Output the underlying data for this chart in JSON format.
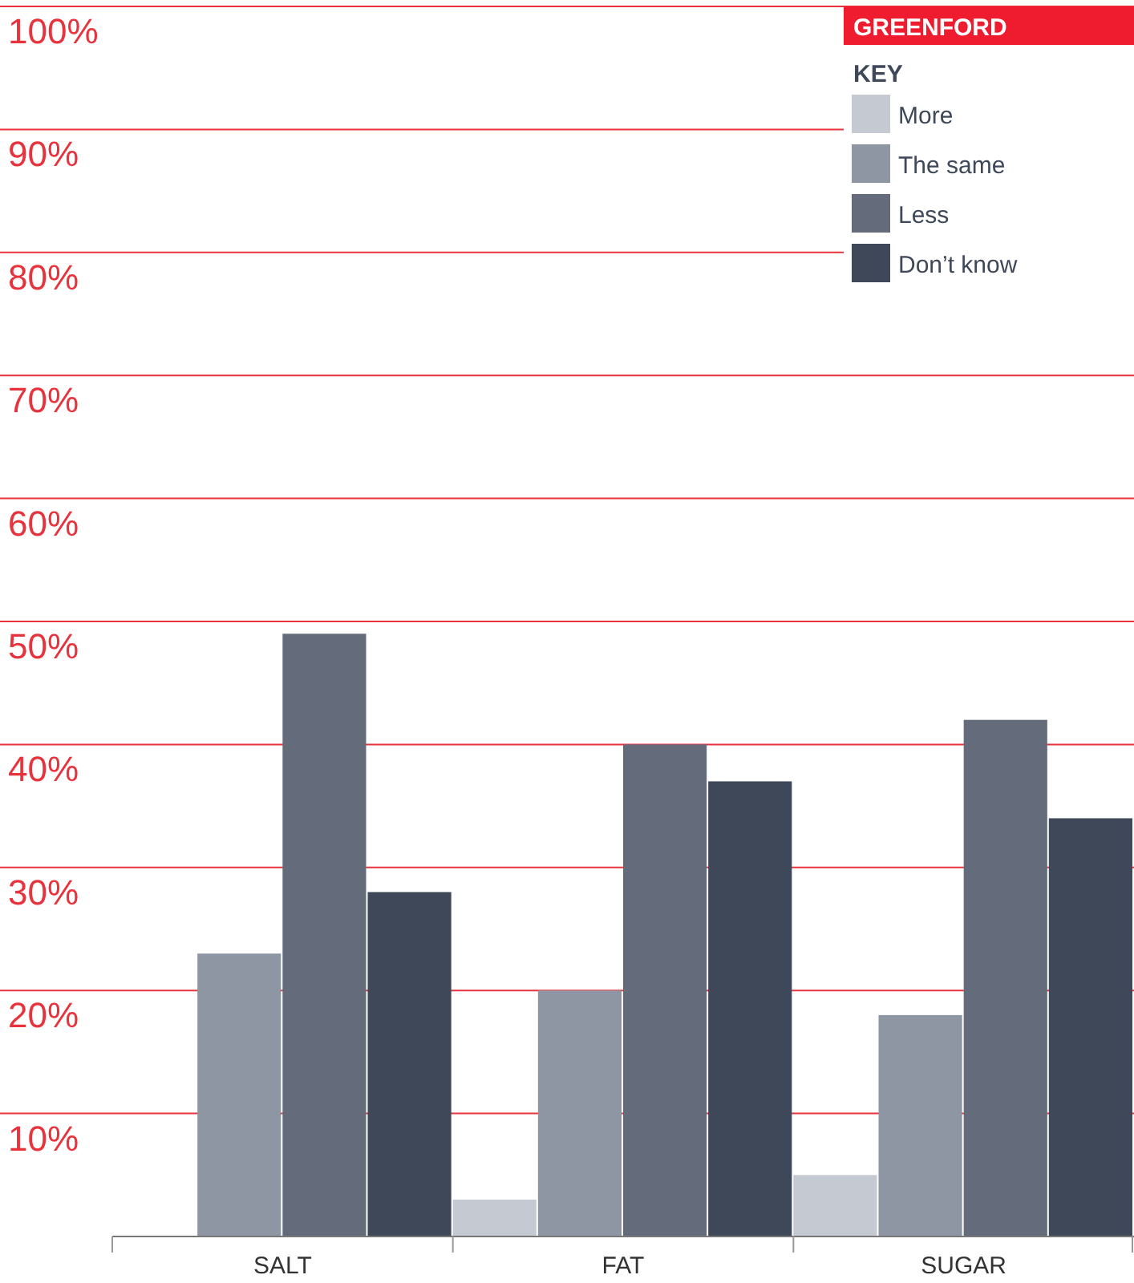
{
  "chart_data": {
    "type": "bar",
    "title": "GREENFORD",
    "legend_title": "KEY",
    "categories": [
      "SALT",
      "FAT",
      "SUGAR"
    ],
    "series": [
      {
        "name": "More",
        "color": "#c5c9d1",
        "values": [
          0,
          3,
          5
        ]
      },
      {
        "name": "The same",
        "color": "#8e96a3",
        "values": [
          23,
          20,
          18
        ]
      },
      {
        "name": "Less",
        "color": "#646c7c",
        "values": [
          49,
          40,
          42
        ]
      },
      {
        "name": "Don’t know",
        "color": "#3f4858",
        "values": [
          28,
          37,
          34
        ]
      }
    ],
    "ylim": [
      0,
      100
    ],
    "yticks": [
      {
        "value": 10,
        "label": "10%"
      },
      {
        "value": 20,
        "label": "20%"
      },
      {
        "value": 30,
        "label": "30%"
      },
      {
        "value": 40,
        "label": "40%"
      },
      {
        "value": 50,
        "label": "50%"
      },
      {
        "value": 60,
        "label": "60%"
      },
      {
        "value": 70,
        "label": "70%"
      },
      {
        "value": 80,
        "label": "80%"
      },
      {
        "value": 90,
        "label": "90%"
      },
      {
        "value": 100,
        "label": "100%"
      }
    ],
    "grid": "y",
    "legend": "top right"
  }
}
